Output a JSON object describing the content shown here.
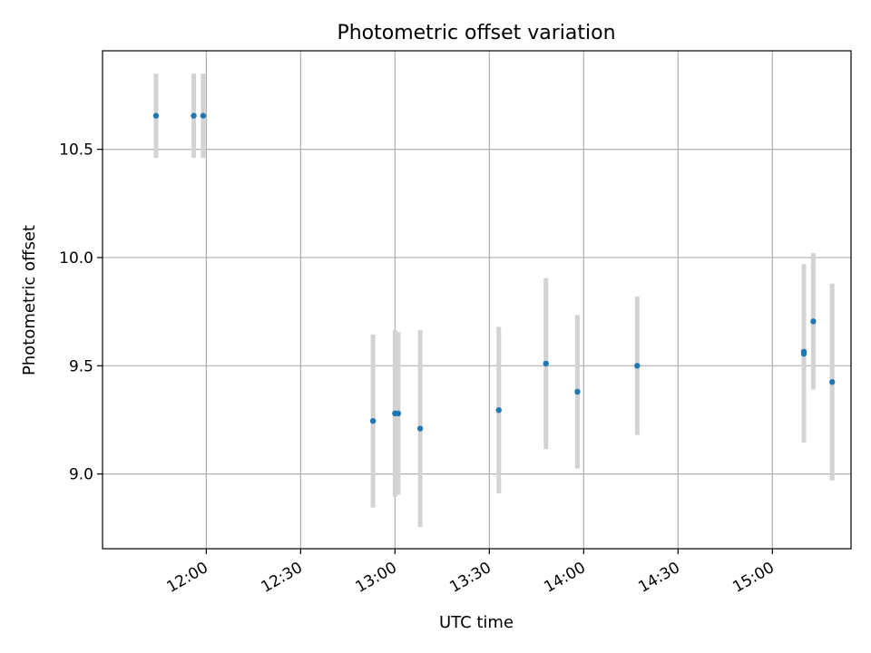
{
  "chart_data": {
    "type": "scatter",
    "title": "Photometric offset variation",
    "xlabel": "UTC time",
    "ylabel": "Photometric offset",
    "x_axis": "time",
    "xlim": [
      "11:27",
      "15:25"
    ],
    "ylim": [
      8.655,
      10.955
    ],
    "x_ticks": [
      "12:00",
      "12:30",
      "13:00",
      "13:30",
      "14:00",
      "14:30",
      "15:00"
    ],
    "y_ticks": [
      9.0,
      9.5,
      10.0,
      10.5
    ],
    "grid": true,
    "colors": {
      "point": "#1f77b4",
      "errorbar": "#d3d3d3",
      "grid": "#b0b0b0"
    },
    "series": [
      {
        "points": [
          {
            "x": "11:44",
            "y": 10.655,
            "yerr": 0.195
          },
          {
            "x": "11:56",
            "y": 10.655,
            "yerr": 0.195
          },
          {
            "x": "11:59",
            "y": 10.655,
            "yerr": 0.195
          },
          {
            "x": "12:53",
            "y": 9.245,
            "yerr": 0.4
          },
          {
            "x": "13:00",
            "y": 9.28,
            "yerr": 0.385
          },
          {
            "x": "13:01",
            "y": 9.28,
            "yerr": 0.375
          },
          {
            "x": "13:08",
            "y": 9.21,
            "yerr": 0.455
          },
          {
            "x": "13:33",
            "y": 9.295,
            "yerr": 0.385
          },
          {
            "x": "13:48",
            "y": 9.51,
            "yerr": 0.395
          },
          {
            "x": "13:58",
            "y": 9.38,
            "yerr": 0.355
          },
          {
            "x": "14:17",
            "y": 9.5,
            "yerr": 0.32
          },
          {
            "x": "15:10",
            "y": 9.555,
            "yerr": 0.41
          },
          {
            "x": "15:10",
            "y": 9.565,
            "yerr": 0.405
          },
          {
            "x": "15:13",
            "y": 9.705,
            "yerr": 0.315
          },
          {
            "x": "15:19",
            "y": 9.425,
            "yerr": 0.455
          }
        ]
      }
    ]
  }
}
